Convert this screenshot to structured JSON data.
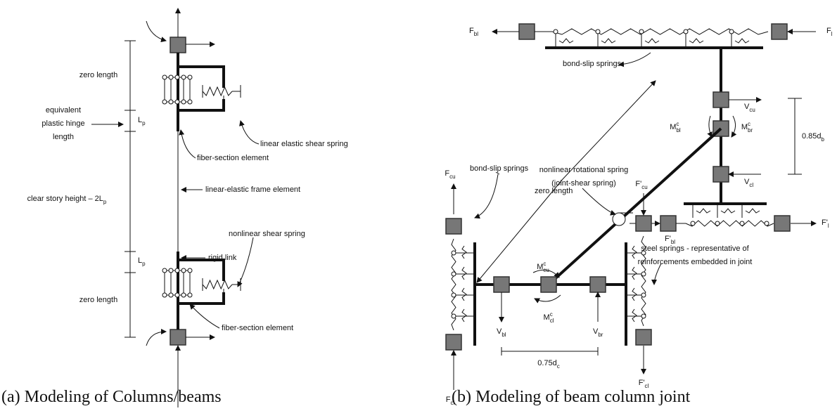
{
  "panel_a": {
    "zero_length_top": "zero length",
    "hinge_length": [
      "equivalent",
      "plastic hinge",
      "length"
    ],
    "lp_top": {
      "main": "L",
      "sub": "p"
    },
    "linear_elastic_shear_spring": "linear elastic shear spring",
    "fiber_section_top": "fiber-section element",
    "linear_elastic_frame": "linear-elastic frame element",
    "clear_height": {
      "main": "clear story height – 2L",
      "sub": "p"
    },
    "nonlinear_shear_spring": "nonlinear shear spring",
    "rigid_link": "rigid link",
    "lp_bottom": {
      "main": "L",
      "sub": "p"
    },
    "zero_length_bottom": "zero length",
    "fiber_section_bottom": "fiber-section element",
    "caption": "(a)  Modeling of Columns/beams"
  },
  "panel_b": {
    "f_bl": {
      "main": "F",
      "sub": "bl"
    },
    "f_l": {
      "main": "F",
      "sub": "l"
    },
    "bond_slip_top": "bond-slip springs",
    "v_cu": {
      "main": "V",
      "sub": "cu"
    },
    "d_b": {
      "main": "0.85d",
      "sub": "b"
    },
    "m_bl": {
      "main": "M",
      "sup": "c",
      "sub": "bl"
    },
    "m_br": {
      "main": "M",
      "sup": "c",
      "sub": "br"
    },
    "rotational_spring": [
      "nonlinear rotational spring",
      "(joint-shear spring)"
    ],
    "v_cl": {
      "main": "V",
      "sub": "cl"
    },
    "bond_slip_left": "bond-slip springs",
    "zero_length": "zero length",
    "f_cu": {
      "main": "F",
      "sub": "cu"
    },
    "f_cu_prime": {
      "main": "F'",
      "sub": "cu"
    },
    "f_l_prime": {
      "main": "F'",
      "sub": "l"
    },
    "f_bl_prime": {
      "main": "F'",
      "sub": "bl"
    },
    "steel_springs": [
      "steel springs - representative of",
      "reinforcements embedded in joint"
    ],
    "m_cu": {
      "main": "M",
      "sup": "c",
      "sub": "cu"
    },
    "m_cl": {
      "main": "M",
      "sup": "c",
      "sub": "cl"
    },
    "v_bl": {
      "main": "V",
      "sub": "bl"
    },
    "v_br": {
      "main": "V",
      "sub": "br"
    },
    "d_c": {
      "main": "0.75d",
      "sub": "c"
    },
    "f_cl": {
      "main": "F",
      "sub": "cl"
    },
    "f_cl_prime": {
      "main": "F'",
      "sub": "cl"
    },
    "caption": "(b)  Modeling of beam column joint"
  }
}
